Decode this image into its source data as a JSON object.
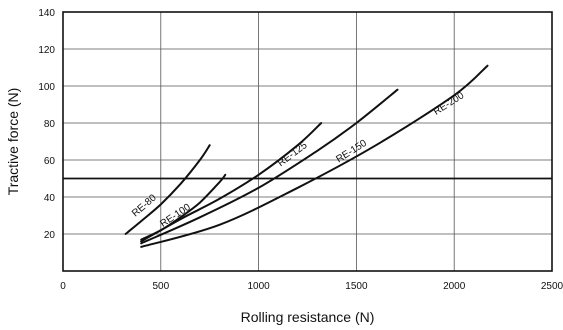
{
  "chart_data": {
    "type": "line",
    "title": "",
    "xlabel": "Rolling resistance (N)",
    "ylabel": "Tractive force (N)",
    "xlim": [
      0,
      2500
    ],
    "ylim": [
      0,
      140
    ],
    "xticks": [
      "0",
      "500",
      "1000",
      "1500",
      "2000",
      "2500"
    ],
    "yticks": [
      "20",
      "40",
      "60",
      "80",
      "100",
      "120",
      "140"
    ],
    "grid": true,
    "legend": "none",
    "reference_line": {
      "y": 50
    },
    "series": [
      {
        "name": "RE-80",
        "points": [
          [
            320,
            20
          ],
          [
            400,
            27
          ],
          [
            500,
            36
          ],
          [
            600,
            47
          ],
          [
            700,
            60
          ],
          [
            750,
            68
          ]
        ]
      },
      {
        "name": "RE-100",
        "points": [
          [
            400,
            17
          ],
          [
            500,
            22
          ],
          [
            600,
            29
          ],
          [
            700,
            37
          ],
          [
            800,
            48
          ],
          [
            830,
            52
          ]
        ]
      },
      {
        "name": "RE-125",
        "points": [
          [
            400,
            16
          ],
          [
            600,
            28
          ],
          [
            800,
            39
          ],
          [
            1000,
            52
          ],
          [
            1200,
            68
          ],
          [
            1320,
            80
          ]
        ]
      },
      {
        "name": "RE-150",
        "points": [
          [
            400,
            15
          ],
          [
            700,
            29
          ],
          [
            1000,
            45
          ],
          [
            1300,
            65
          ],
          [
            1500,
            80
          ],
          [
            1710,
            98
          ]
        ]
      },
      {
        "name": "RE-200",
        "points": [
          [
            400,
            13
          ],
          [
            800,
            25
          ],
          [
            1200,
            45
          ],
          [
            1600,
            68
          ],
          [
            2000,
            95
          ],
          [
            2170,
            111
          ]
        ]
      }
    ]
  }
}
